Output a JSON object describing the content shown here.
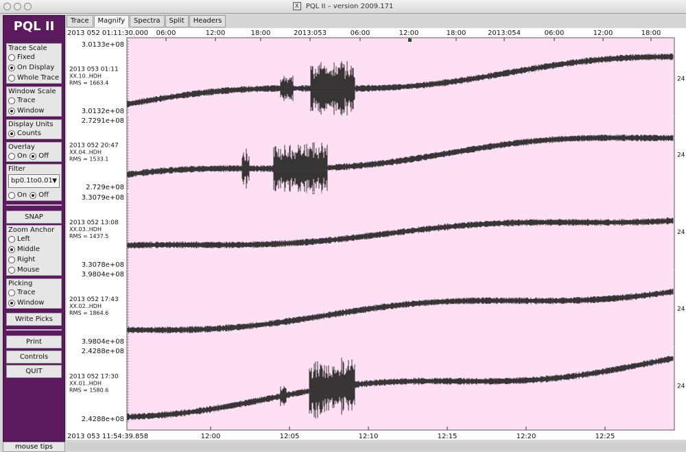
{
  "window": {
    "title": "PQL II – version 2009.171"
  },
  "sidebar": {
    "logo": "PQL II",
    "trace_scale": {
      "title": "Trace Scale",
      "options": [
        "Fixed",
        "On Display",
        "Whole Trace"
      ],
      "selected": "On Display"
    },
    "window_scale": {
      "title": "Window Scale",
      "options": [
        "Trace",
        "Window"
      ],
      "selected": "Window"
    },
    "display_units": {
      "title": "Display Units",
      "options": [
        "Counts"
      ],
      "selected": "Counts"
    },
    "overlay": {
      "title": "Overlay",
      "options": [
        "On",
        "Off"
      ],
      "selected": "Off"
    },
    "filter": {
      "title": "Filter",
      "value": "bp0.1to0.01",
      "options": [
        "On",
        "Off"
      ],
      "selected": "Off"
    },
    "snap_label": "SNAP",
    "zoom_anchor": {
      "title": "Zoom Anchor",
      "options": [
        "Left",
        "Middle",
        "Right",
        "Mouse"
      ],
      "selected": "Middle"
    },
    "picking": {
      "title": "Picking",
      "options": [
        "Trace",
        "Window"
      ],
      "selected": "Window"
    },
    "write_picks_label": "Write Picks",
    "print_label": "Print",
    "controls_label": "Controls",
    "quit_label": "QUIT",
    "mouse_tips_label": "mouse tips"
  },
  "tabs": [
    "Trace",
    "Magnify",
    "Spectra",
    "Split",
    "Headers"
  ],
  "active_tab": "Magnify",
  "top_axis": {
    "start_label": "2013 052 01:11:30.000",
    "ticks": [
      "06:00",
      "12:00",
      "18:00",
      "2013:053",
      "06:00",
      "12:00",
      "18:00",
      "2013:054",
      "06:00",
      "12:00",
      "18:00"
    ]
  },
  "bottom_axis": {
    "start_label": "2013 053 11:54:39.858",
    "ticks": [
      "12:00",
      "12:05",
      "12:10",
      "12:15",
      "12:20",
      "12:25"
    ]
  },
  "traces": [
    {
      "start": "2013 053 01:11",
      "station": "XX.10..HDH",
      "rms": "RMS = 1663.4",
      "ymax": "3.0133e+08",
      "ymin": "3.0132e+08",
      "right": "24"
    },
    {
      "start": "2013 052 20:47",
      "station": "XX.04..HDH",
      "rms": "RMS = 1533.1",
      "ymax": "2.7291e+08",
      "ymin": "2.729e+08",
      "right": "24"
    },
    {
      "start": "2013 052 13:08",
      "station": "XX.03..HDH",
      "rms": "RMS = 1437.5",
      "ymax": "3.3079e+08",
      "ymin": "3.3078e+08",
      "right": "24"
    },
    {
      "start": "2013 052 17:43",
      "station": "XX.02..HDH",
      "rms": "RMS = 1864.6",
      "ymax": "3.9804e+08",
      "ymin": "3.9804e+08",
      "right": "24"
    },
    {
      "start": "2013 052 17:30",
      "station": "XX.01..HDH",
      "rms": "RMS = 1580.6",
      "ymax": "2.4288e+08",
      "ymin": "2.4288e+08",
      "right": "24"
    }
  ],
  "colors": {
    "sidebar": "#5b1a5e",
    "plot_bg": "#fde0f4",
    "trace": "#222222"
  }
}
